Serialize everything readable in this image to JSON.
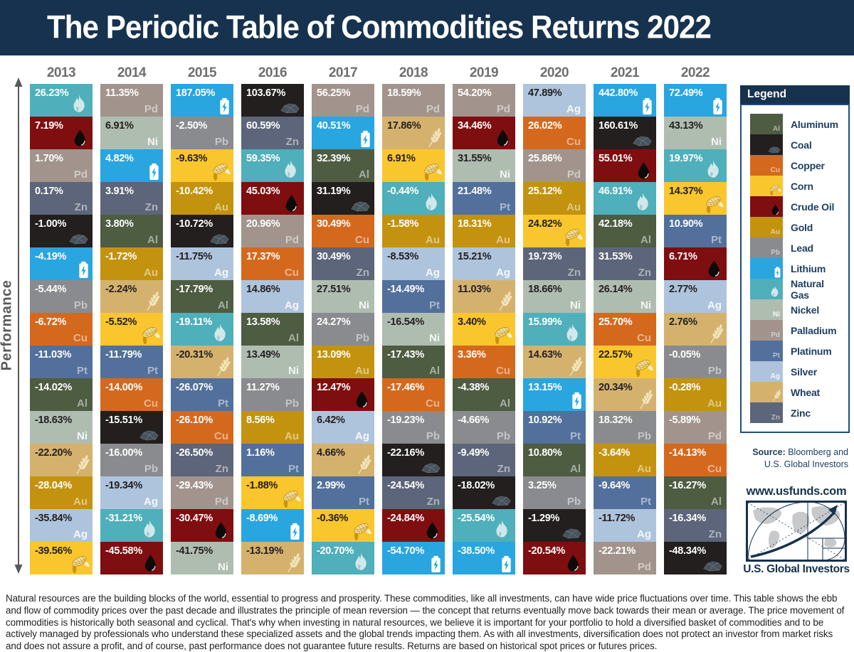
{
  "header": {
    "title": "The Periodic Table of Commodities Returns 2022"
  },
  "axis": {
    "label": "Performance"
  },
  "commodities": {
    "aluminum": {
      "label": "Aluminum",
      "symbol": "Al",
      "color": "#4e5c42",
      "text": "light"
    },
    "coal": {
      "label": "Coal",
      "icon": "coal-icon",
      "color": "#231f1e",
      "text": "light"
    },
    "copper": {
      "label": "Copper",
      "symbol": "Cu",
      "color": "#d4691e",
      "text": "light"
    },
    "corn": {
      "label": "Corn",
      "icon": "corn-icon",
      "color": "#fac62d",
      "text": "dark"
    },
    "crude_oil": {
      "label": "Crude Oil",
      "icon": "oil-drop-icon",
      "color": "#7f0e10",
      "text": "light"
    },
    "gold": {
      "label": "Gold",
      "symbol": "Au",
      "color": "#c3930f",
      "text": "light"
    },
    "lead": {
      "label": "Lead",
      "symbol": "Pb",
      "color": "#898b8e",
      "text": "light"
    },
    "lithium": {
      "label": "Lithium",
      "icon": "battery-icon",
      "color": "#29a5e0",
      "text": "light"
    },
    "natural_gas": {
      "label": "Natural Gas",
      "icon": "flame-icon",
      "color": "#4fafba",
      "text": "light"
    },
    "nickel": {
      "label": "Nickel",
      "symbol": "Ni",
      "color": "#afbdb1",
      "text": "dark"
    },
    "palladium": {
      "label": "Palladium",
      "symbol": "Pd",
      "color": "#a2948c",
      "text": "light"
    },
    "platinum": {
      "label": "Platinum",
      "symbol": "Pt",
      "color": "#52709b",
      "text": "light"
    },
    "silver": {
      "label": "Silver",
      "symbol": "Ag",
      "color": "#aec4dd",
      "text": "dark"
    },
    "wheat": {
      "label": "Wheat",
      "icon": "wheat-icon",
      "color": "#d4b26e",
      "text": "dark"
    },
    "zinc": {
      "label": "Zinc",
      "symbol": "Zn",
      "color": "#5c6579",
      "text": "light"
    }
  },
  "chart_data": {
    "type": "table",
    "title": "The Periodic Table of Commodities Returns 2022",
    "description": "Annual returns of 15 commodities, ranked best (top) to worst (bottom) within each year",
    "unit": "%",
    "years": [
      "2013",
      "2014",
      "2015",
      "2016",
      "2017",
      "2018",
      "2019",
      "2020",
      "2021",
      "2022"
    ],
    "columns": [
      {
        "year": "2013",
        "cells": [
          {
            "pct": 26.23,
            "commodity": "natural_gas"
          },
          {
            "pct": 7.19,
            "commodity": "crude_oil"
          },
          {
            "pct": 1.7,
            "commodity": "palladium"
          },
          {
            "pct": 0.17,
            "commodity": "zinc"
          },
          {
            "pct": -1.0,
            "commodity": "coal"
          },
          {
            "pct": -4.19,
            "commodity": "lithium"
          },
          {
            "pct": -5.44,
            "commodity": "lead"
          },
          {
            "pct": -6.72,
            "commodity": "copper"
          },
          {
            "pct": -11.03,
            "commodity": "platinum"
          },
          {
            "pct": -14.02,
            "commodity": "aluminum"
          },
          {
            "pct": -18.63,
            "commodity": "nickel"
          },
          {
            "pct": -22.2,
            "commodity": "wheat"
          },
          {
            "pct": -28.04,
            "commodity": "gold"
          },
          {
            "pct": -35.84,
            "commodity": "silver"
          },
          {
            "pct": -39.56,
            "commodity": "corn"
          }
        ]
      },
      {
        "year": "2014",
        "cells": [
          {
            "pct": 11.35,
            "commodity": "palladium"
          },
          {
            "pct": 6.91,
            "commodity": "nickel"
          },
          {
            "pct": 4.82,
            "commodity": "lithium"
          },
          {
            "pct": 3.91,
            "commodity": "zinc"
          },
          {
            "pct": 3.8,
            "commodity": "aluminum"
          },
          {
            "pct": -1.72,
            "commodity": "gold"
          },
          {
            "pct": -2.24,
            "commodity": "wheat"
          },
          {
            "pct": -5.52,
            "commodity": "corn"
          },
          {
            "pct": -11.79,
            "commodity": "platinum"
          },
          {
            "pct": -14.0,
            "commodity": "copper"
          },
          {
            "pct": -15.51,
            "commodity": "coal"
          },
          {
            "pct": -16.0,
            "commodity": "lead"
          },
          {
            "pct": -19.34,
            "commodity": "silver"
          },
          {
            "pct": -31.21,
            "commodity": "natural_gas"
          },
          {
            "pct": -45.58,
            "commodity": "crude_oil"
          }
        ]
      },
      {
        "year": "2015",
        "cells": [
          {
            "pct": 187.05,
            "commodity": "lithium"
          },
          {
            "pct": -2.5,
            "commodity": "lead"
          },
          {
            "pct": -9.63,
            "commodity": "corn"
          },
          {
            "pct": -10.42,
            "commodity": "gold"
          },
          {
            "pct": -10.72,
            "commodity": "coal"
          },
          {
            "pct": -11.75,
            "commodity": "silver"
          },
          {
            "pct": -17.79,
            "commodity": "aluminum"
          },
          {
            "pct": -19.11,
            "commodity": "natural_gas"
          },
          {
            "pct": -20.31,
            "commodity": "wheat"
          },
          {
            "pct": -26.07,
            "commodity": "platinum"
          },
          {
            "pct": -26.1,
            "commodity": "copper"
          },
          {
            "pct": -26.5,
            "commodity": "zinc"
          },
          {
            "pct": -29.43,
            "commodity": "palladium"
          },
          {
            "pct": -30.47,
            "commodity": "crude_oil"
          },
          {
            "pct": -41.75,
            "commodity": "nickel"
          }
        ]
      },
      {
        "year": "2016",
        "cells": [
          {
            "pct": 103.67,
            "commodity": "coal"
          },
          {
            "pct": 60.59,
            "commodity": "zinc"
          },
          {
            "pct": 59.35,
            "commodity": "natural_gas"
          },
          {
            "pct": 45.03,
            "commodity": "crude_oil"
          },
          {
            "pct": 20.96,
            "commodity": "palladium"
          },
          {
            "pct": 17.37,
            "commodity": "copper"
          },
          {
            "pct": 14.86,
            "commodity": "silver"
          },
          {
            "pct": 13.58,
            "commodity": "aluminum"
          },
          {
            "pct": 13.49,
            "commodity": "nickel"
          },
          {
            "pct": 11.27,
            "commodity": "lead"
          },
          {
            "pct": 8.56,
            "commodity": "gold"
          },
          {
            "pct": 1.16,
            "commodity": "platinum"
          },
          {
            "pct": -1.88,
            "commodity": "corn"
          },
          {
            "pct": -8.69,
            "commodity": "lithium"
          },
          {
            "pct": -13.19,
            "commodity": "wheat"
          }
        ]
      },
      {
        "year": "2017",
        "cells": [
          {
            "pct": 56.25,
            "commodity": "palladium"
          },
          {
            "pct": 40.51,
            "commodity": "lithium"
          },
          {
            "pct": 32.39,
            "commodity": "aluminum"
          },
          {
            "pct": 31.19,
            "commodity": "coal"
          },
          {
            "pct": 30.49,
            "commodity": "copper"
          },
          {
            "pct": 30.49,
            "commodity": "zinc"
          },
          {
            "pct": 27.51,
            "commodity": "nickel"
          },
          {
            "pct": 24.27,
            "commodity": "lead"
          },
          {
            "pct": 13.09,
            "commodity": "gold"
          },
          {
            "pct": 12.47,
            "commodity": "crude_oil"
          },
          {
            "pct": 6.42,
            "commodity": "silver"
          },
          {
            "pct": 4.66,
            "commodity": "wheat"
          },
          {
            "pct": 2.99,
            "commodity": "platinum"
          },
          {
            "pct": -0.36,
            "commodity": "corn"
          },
          {
            "pct": -20.7,
            "commodity": "natural_gas"
          }
        ]
      },
      {
        "year": "2018",
        "cells": [
          {
            "pct": 18.59,
            "commodity": "palladium"
          },
          {
            "pct": 17.86,
            "commodity": "wheat"
          },
          {
            "pct": 6.91,
            "commodity": "corn"
          },
          {
            "pct": -0.44,
            "commodity": "natural_gas"
          },
          {
            "pct": -1.58,
            "commodity": "gold"
          },
          {
            "pct": -8.53,
            "commodity": "silver"
          },
          {
            "pct": -14.49,
            "commodity": "platinum"
          },
          {
            "pct": -16.54,
            "commodity": "nickel"
          },
          {
            "pct": -17.43,
            "commodity": "aluminum"
          },
          {
            "pct": -17.46,
            "commodity": "copper"
          },
          {
            "pct": -19.23,
            "commodity": "lead"
          },
          {
            "pct": -22.16,
            "commodity": "coal"
          },
          {
            "pct": -24.54,
            "commodity": "zinc"
          },
          {
            "pct": -24.84,
            "commodity": "crude_oil"
          },
          {
            "pct": -54.7,
            "commodity": "lithium"
          }
        ]
      },
      {
        "year": "2019",
        "cells": [
          {
            "pct": 54.2,
            "commodity": "palladium"
          },
          {
            "pct": 34.46,
            "commodity": "crude_oil"
          },
          {
            "pct": 31.55,
            "commodity": "nickel"
          },
          {
            "pct": 21.48,
            "commodity": "platinum"
          },
          {
            "pct": 18.31,
            "commodity": "gold"
          },
          {
            "pct": 15.21,
            "commodity": "silver"
          },
          {
            "pct": 11.03,
            "commodity": "wheat"
          },
          {
            "pct": 3.4,
            "commodity": "corn"
          },
          {
            "pct": 3.36,
            "commodity": "copper"
          },
          {
            "pct": -4.38,
            "commodity": "aluminum"
          },
          {
            "pct": -4.66,
            "commodity": "lead"
          },
          {
            "pct": -9.49,
            "commodity": "zinc"
          },
          {
            "pct": -18.02,
            "commodity": "coal"
          },
          {
            "pct": -25.54,
            "commodity": "natural_gas"
          },
          {
            "pct": -38.5,
            "commodity": "lithium"
          }
        ]
      },
      {
        "year": "2020",
        "cells": [
          {
            "pct": 47.89,
            "commodity": "silver"
          },
          {
            "pct": 26.02,
            "commodity": "copper"
          },
          {
            "pct": 25.86,
            "commodity": "palladium"
          },
          {
            "pct": 25.12,
            "commodity": "gold"
          },
          {
            "pct": 24.82,
            "commodity": "corn"
          },
          {
            "pct": 19.73,
            "commodity": "zinc"
          },
          {
            "pct": 18.66,
            "commodity": "nickel"
          },
          {
            "pct": 15.99,
            "commodity": "natural_gas"
          },
          {
            "pct": 14.63,
            "commodity": "wheat"
          },
          {
            "pct": 13.15,
            "commodity": "lithium"
          },
          {
            "pct": 10.92,
            "commodity": "platinum"
          },
          {
            "pct": 10.8,
            "commodity": "aluminum"
          },
          {
            "pct": 3.25,
            "commodity": "lead"
          },
          {
            "pct": -1.29,
            "commodity": "coal"
          },
          {
            "pct": -20.54,
            "commodity": "crude_oil"
          }
        ]
      },
      {
        "year": "2021",
        "cells": [
          {
            "pct": 442.8,
            "commodity": "lithium"
          },
          {
            "pct": 160.61,
            "commodity": "coal"
          },
          {
            "pct": 55.01,
            "commodity": "crude_oil"
          },
          {
            "pct": 46.91,
            "commodity": "natural_gas"
          },
          {
            "pct": 42.18,
            "commodity": "aluminum"
          },
          {
            "pct": 31.53,
            "commodity": "zinc"
          },
          {
            "pct": 26.14,
            "commodity": "nickel"
          },
          {
            "pct": 25.7,
            "commodity": "copper"
          },
          {
            "pct": 22.57,
            "commodity": "corn"
          },
          {
            "pct": 20.34,
            "commodity": "wheat"
          },
          {
            "pct": 18.32,
            "commodity": "lead"
          },
          {
            "pct": -3.64,
            "commodity": "gold"
          },
          {
            "pct": -9.64,
            "commodity": "platinum"
          },
          {
            "pct": -11.72,
            "commodity": "silver"
          },
          {
            "pct": -22.21,
            "commodity": "palladium"
          }
        ]
      },
      {
        "year": "2022",
        "cells": [
          {
            "pct": 72.49,
            "commodity": "lithium"
          },
          {
            "pct": 43.13,
            "commodity": "nickel"
          },
          {
            "pct": 19.97,
            "commodity": "natural_gas"
          },
          {
            "pct": 14.37,
            "commodity": "corn"
          },
          {
            "pct": 10.9,
            "commodity": "platinum"
          },
          {
            "pct": 6.71,
            "commodity": "crude_oil"
          },
          {
            "pct": 2.77,
            "commodity": "silver"
          },
          {
            "pct": 2.76,
            "commodity": "wheat"
          },
          {
            "pct": -0.05,
            "commodity": "lead"
          },
          {
            "pct": -0.28,
            "commodity": "gold"
          },
          {
            "pct": -5.89,
            "commodity": "palladium"
          },
          {
            "pct": -14.13,
            "commodity": "copper"
          },
          {
            "pct": -16.27,
            "commodity": "aluminum"
          },
          {
            "pct": -16.34,
            "commodity": "zinc"
          },
          {
            "pct": -48.34,
            "commodity": "coal"
          }
        ]
      }
    ]
  },
  "legend": {
    "title": "Legend",
    "items": [
      "aluminum",
      "coal",
      "copper",
      "corn",
      "crude_oil",
      "gold",
      "lead",
      "lithium",
      "natural_gas",
      "nickel",
      "palladium",
      "platinum",
      "silver",
      "wheat",
      "zinc"
    ],
    "source_label": "Source:",
    "source_line1": "Bloomberg and",
    "source_line2": "U.S. Global Investors"
  },
  "branding": {
    "url": "www.usfunds.com",
    "company": "U.S. Global Investors"
  },
  "footer": {
    "paragraph": "Natural resources are the building blocks of the world, essential to progress and prosperity. These commodities, like all investments, can have wide price fluctuations over time. This table shows the ebb and flow of commodity prices over the past decade and illustrates the principle of mean reversion — the concept that returns eventually move back towards their mean or average. The price movement of commodities is historically both seasonal and cyclical. That's why when investing in natural resources, we believe it is important for your portfolio to hold a diversified basket of commodities and to be actively managed by professionals who understand these specialized assets and the global trends impacting them. As with all investments, diversification does not protect an investor from market risks and does not assure a profit, and of course, past performance does not guarantee future results. Returns are based on historical spot prices or futures prices."
  }
}
